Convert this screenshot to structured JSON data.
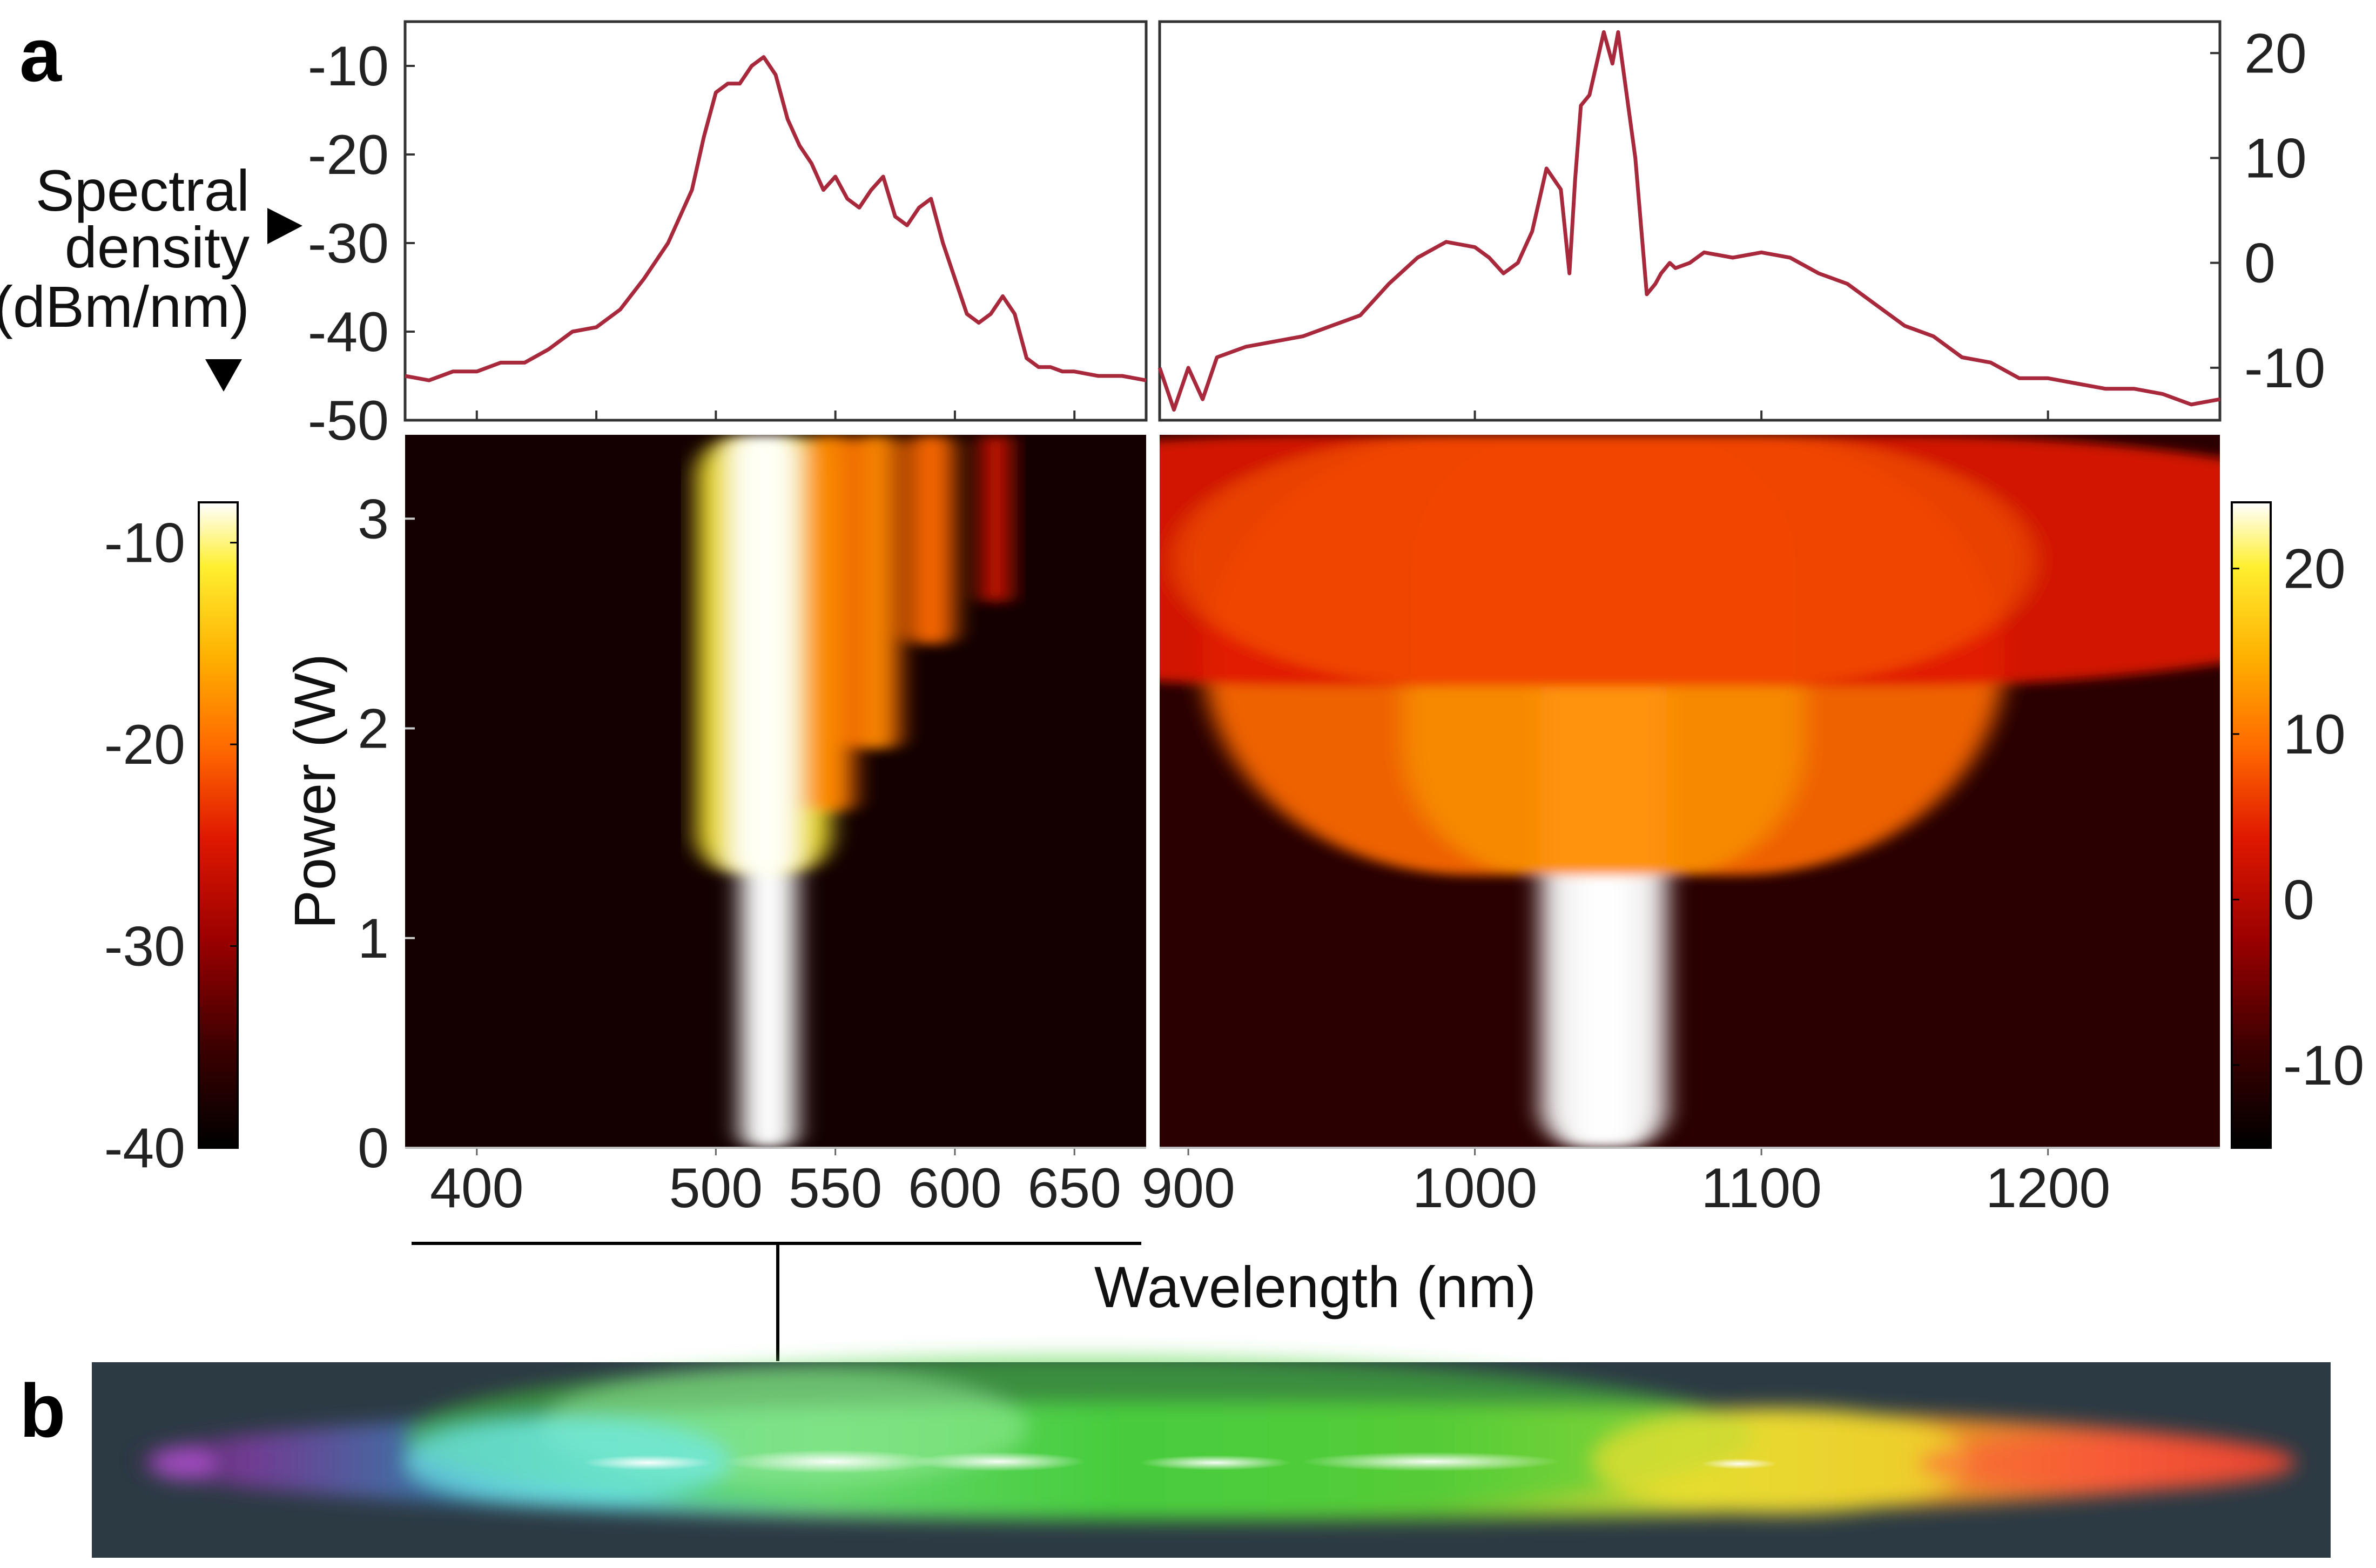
{
  "panels": {
    "a": "a",
    "b": "b"
  },
  "labels": {
    "spectral_density": [
      "Spectral",
      "density",
      "(dBm/nm)"
    ],
    "power_axis": "Power (W)",
    "wavelength_axis": "Wavelength (nm)"
  },
  "colors": {
    "spectrum_line": "#a8283c",
    "colormap": [
      "#000000",
      "#3a0000",
      "#9a0000",
      "#e01800",
      "#ff6a00",
      "#ffb000",
      "#ffef30",
      "#ffffff"
    ]
  },
  "chart_data": [
    {
      "type": "line",
      "panel": "a-top-left",
      "xlim": [
        370,
        680
      ],
      "ylim": [
        -50,
        -5
      ],
      "xticks": [
        400,
        450,
        500,
        550,
        600,
        650
      ],
      "yticks": [
        -10,
        -20,
        -30,
        -40,
        -50
      ],
      "ytick_labels": [
        "-10",
        "-20",
        "-30",
        "-40",
        "-50"
      ],
      "ylabel": "Spectral density (dBm/nm)",
      "x": [
        370,
        380,
        390,
        400,
        410,
        420,
        430,
        440,
        450,
        460,
        470,
        480,
        490,
        495,
        500,
        505,
        510,
        515,
        520,
        525,
        530,
        535,
        540,
        545,
        550,
        555,
        560,
        565,
        570,
        575,
        580,
        585,
        590,
        595,
        600,
        605,
        610,
        615,
        620,
        625,
        630,
        635,
        640,
        645,
        650,
        660,
        670,
        680
      ],
      "y": [
        -45,
        -45.5,
        -44.5,
        -44.5,
        -43.5,
        -43.5,
        -42,
        -40,
        -39.5,
        -37.5,
        -34,
        -30,
        -24,
        -18,
        -13,
        -12,
        -12,
        -10,
        -9,
        -11,
        -16,
        -19,
        -21,
        -24,
        -22.5,
        -25,
        -26,
        -24,
        -22.5,
        -27,
        -28,
        -26,
        -25,
        -30,
        -34,
        -38,
        -39,
        -38,
        -36,
        -38,
        -43,
        -44,
        -44,
        -44.5,
        -44.5,
        -45,
        -45,
        -45.5
      ]
    },
    {
      "type": "line",
      "panel": "a-top-right",
      "xlim": [
        890,
        1260
      ],
      "ylim": [
        -15,
        23
      ],
      "xticks": [
        1000,
        1100,
        1200
      ],
      "yticks": [
        20,
        10,
        0,
        -10
      ],
      "ytick_labels": [
        "20",
        "10",
        "0",
        "-10"
      ],
      "y_axis_side": "right",
      "x": [
        890,
        895,
        900,
        905,
        910,
        920,
        930,
        940,
        950,
        960,
        970,
        980,
        990,
        1000,
        1005,
        1010,
        1015,
        1020,
        1025,
        1030,
        1033,
        1035,
        1037,
        1040,
        1045,
        1048,
        1050,
        1053,
        1056,
        1060,
        1063,
        1065,
        1068,
        1070,
        1075,
        1080,
        1090,
        1100,
        1110,
        1120,
        1130,
        1140,
        1150,
        1160,
        1170,
        1180,
        1190,
        1200,
        1210,
        1220,
        1230,
        1240,
        1250,
        1260
      ],
      "y": [
        -10,
        -14,
        -10,
        -13,
        -9,
        -8,
        -7.5,
        -7,
        -6,
        -5,
        -2,
        0.5,
        2,
        1.5,
        0.5,
        -1,
        0,
        3,
        9,
        7,
        -1,
        8,
        15,
        16,
        22,
        19,
        22,
        16,
        10,
        -3,
        -2,
        -1,
        0,
        -0.5,
        0,
        1,
        0.5,
        1,
        0.5,
        -1,
        -2,
        -4,
        -6,
        -7,
        -9,
        -9.5,
        -11,
        -11,
        -11.5,
        -12,
        -12,
        -12.5,
        -13.5,
        -13
      ]
    },
    {
      "type": "heatmap",
      "panel": "a-bottom-left",
      "xlim": [
        370,
        680
      ],
      "ylim": [
        0,
        3.4
      ],
      "xticks": [
        400,
        500,
        550,
        600,
        650
      ],
      "xtick_labels": [
        "400",
        "500",
        "550",
        "600",
        "650"
      ],
      "yticks": [
        0,
        1,
        2,
        3
      ],
      "ytick_labels": [
        "0",
        "1",
        "2",
        "3"
      ],
      "ylabel": "Power (W)",
      "colorbar": {
        "ticks": [
          -10,
          -20,
          -30,
          -40
        ],
        "tick_labels": [
          "-10",
          "-20",
          "-30",
          "-40"
        ],
        "range": [
          -40,
          -8
        ],
        "side": "left"
      },
      "features": [
        {
          "center_nm": 522,
          "width_nm": 12,
          "power_start": 0.0,
          "level": 1.0
        },
        {
          "center_nm": 520,
          "width_nm": 28,
          "power_start": 1.3,
          "level": 0.9
        },
        {
          "center_nm": 548,
          "width_nm": 10,
          "power_start": 1.6,
          "level": 0.6
        },
        {
          "center_nm": 567,
          "width_nm": 10,
          "power_start": 1.9,
          "level": 0.55
        },
        {
          "center_nm": 590,
          "width_nm": 10,
          "power_start": 2.4,
          "level": 0.45
        },
        {
          "center_nm": 617,
          "width_nm": 6,
          "power_start": 2.6,
          "level": 0.3
        }
      ]
    },
    {
      "type": "heatmap",
      "panel": "a-bottom-right",
      "xlim": [
        890,
        1260
      ],
      "ylim": [
        0,
        3.4
      ],
      "xticks": [
        900,
        1000,
        1100,
        1200
      ],
      "xtick_labels": [
        "900",
        "1000",
        "1100",
        "1200"
      ],
      "colorbar": {
        "ticks": [
          20,
          10,
          0,
          -10
        ],
        "tick_labels": [
          "20",
          "10",
          "0",
          "-10"
        ],
        "range": [
          -15,
          24
        ],
        "side": "right"
      },
      "features": [
        {
          "center_nm": 1045,
          "width_nm": 22,
          "power_start": 0.0,
          "level": 1.0
        },
        {
          "center_nm": 1045,
          "width_nm": 140,
          "power_start": 1.3,
          "level": 0.55
        },
        {
          "center_nm": 1045,
          "width_nm": 300,
          "power_start": 2.2,
          "level": 0.4
        }
      ]
    }
  ]
}
